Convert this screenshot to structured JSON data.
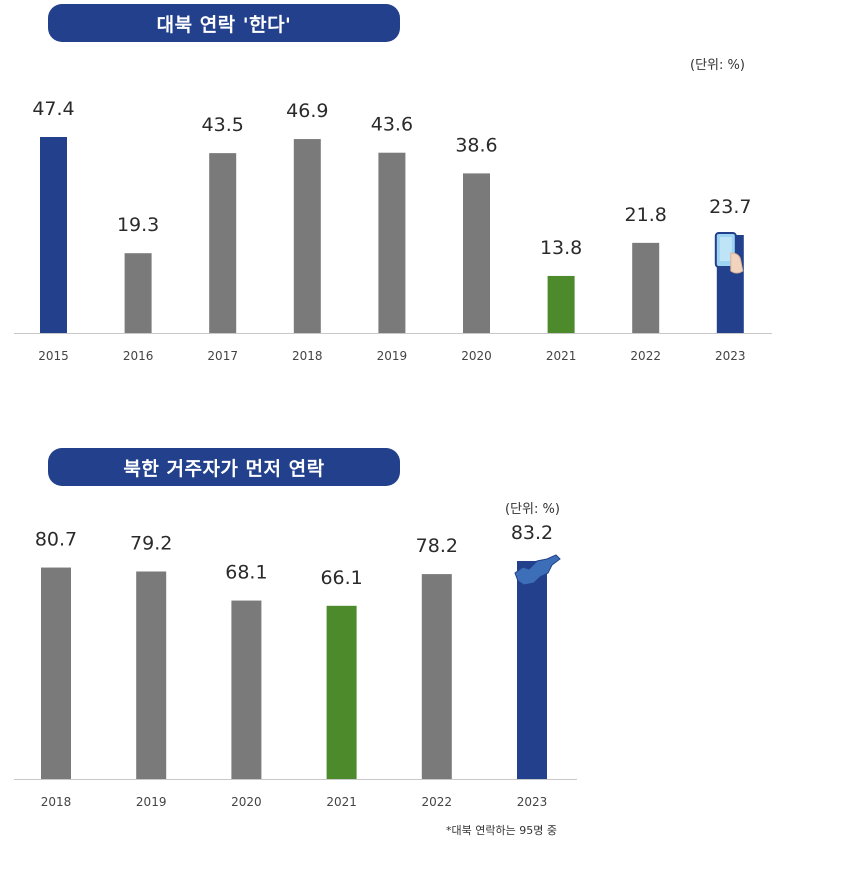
{
  "colors": {
    "blue": "#22408c",
    "gray": "#7a7a7a",
    "green": "#4d8a2c",
    "axis": "#c8c8c8"
  },
  "chart_data": [
    {
      "type": "bar",
      "title": "대북 연락 '한다'",
      "unit_label": "(단위: %)",
      "categories": [
        "2015",
        "2016",
        "2017",
        "2018",
        "2019",
        "2020",
        "2021",
        "2022",
        "2023"
      ],
      "values": [
        47.4,
        19.3,
        43.5,
        46.9,
        43.6,
        38.6,
        13.8,
        21.8,
        23.7
      ],
      "value_labels": [
        "47.4",
        "19.3",
        "43.5",
        "46.9",
        "43.6",
        "38.6",
        "13.8",
        "21.8",
        "23.7"
      ],
      "bar_colors": [
        "blue",
        "gray",
        "gray",
        "gray",
        "gray",
        "gray",
        "green",
        "gray",
        "blue"
      ],
      "decoration": "phone-icon on 2023 bar",
      "ylim": [
        0,
        47.4
      ]
    },
    {
      "type": "bar",
      "title": "북한 거주자가 먼저 연락",
      "unit_label": "(단위: %)",
      "categories": [
        "2018",
        "2019",
        "2020",
        "2021",
        "2022",
        "2023"
      ],
      "values": [
        80.7,
        79.2,
        68.1,
        66.1,
        78.2,
        83.2
      ],
      "value_labels": [
        "80.7",
        "79.2",
        "68.1",
        "66.1",
        "78.2",
        "83.2"
      ],
      "bar_colors": [
        "gray",
        "gray",
        "gray",
        "green",
        "gray",
        "blue"
      ],
      "decoration": "north-korea-map-icon on 2023 bar",
      "footnote": "*대북 연락하는 95명 중",
      "ylim": [
        0,
        83.2
      ]
    }
  ]
}
